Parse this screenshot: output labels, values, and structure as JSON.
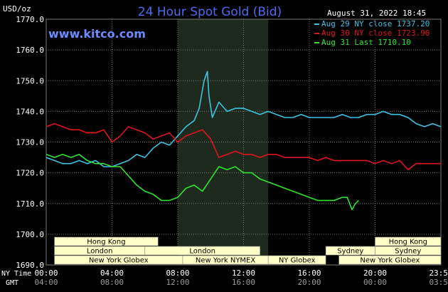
{
  "header": {
    "title": "24 Hour Spot Gold (Bid)",
    "unit": "USD/oz",
    "timestamp": "August 31, 2022 18:45",
    "watermark": "www.kitco.com"
  },
  "colors": {
    "background": "#000000",
    "plot_bg": "#000000",
    "grid": "#7a7a7a",
    "shade": "#1e2a1e",
    "title": "#4a6cf0",
    "watermark": "#6a8cff",
    "axis_text": "#ffffff",
    "session_bar": "#ffffc8",
    "session_text": "#000000",
    "aug29": "#3cc4e6",
    "aug30": "#e0141e",
    "aug31": "#2ee62e"
  },
  "axis": {
    "ny_time_label": "NY Time",
    "gmt_label": "GMT",
    "ny_ticks": [
      "00:00",
      "04:00",
      "08:00",
      "12:00",
      "16:00",
      "20:00",
      "23:59"
    ],
    "gmt_ticks": [
      "04:00",
      "08:00",
      "12:00",
      "16:00",
      "20:00",
      "00:00",
      "03:59"
    ]
  },
  "legend": [
    {
      "label": "Aug 29 NY close 1737.20",
      "color": "#3cc4e6"
    },
    {
      "label": "Aug 30 NY close 1723.90",
      "color": "#e0141e"
    },
    {
      "label": "Aug 31 Last 1710.10",
      "color": "#2ee62e"
    }
  ],
  "sessions": [
    {
      "label": "Hong Kong",
      "start": 0.5,
      "end": 6.8,
      "row": 0
    },
    {
      "label": "Hong Kong",
      "start": 20.0,
      "end": 24.0,
      "row": 0
    },
    {
      "label": "London",
      "start": 0.5,
      "end": 6.0,
      "row": 1
    },
    {
      "label": "London",
      "start": 6.0,
      "end": 13.0,
      "row": 1
    },
    {
      "label": "Sydney",
      "start": 17.0,
      "end": 20.0,
      "row": 1
    },
    {
      "label": "Sydney",
      "start": 20.0,
      "end": 24.0,
      "row": 1
    },
    {
      "label": "New York Globex",
      "start": 0.5,
      "end": 8.3,
      "row": 2
    },
    {
      "label": "New York NYMEX",
      "start": 8.3,
      "end": 13.5,
      "row": 2
    },
    {
      "label": "NY Globex",
      "start": 13.5,
      "end": 17.0,
      "row": 2
    },
    {
      "label": "New York Globex",
      "start": 17.8,
      "end": 24.0,
      "row": 2
    }
  ],
  "chart_data": {
    "type": "line",
    "title": "24 Hour Spot Gold (Bid)",
    "ylabel": "USD/oz",
    "xlabel": "NY Time",
    "xlim": [
      0,
      24
    ],
    "ylim": [
      1690,
      1770
    ],
    "yticks": [
      1690,
      1700,
      1710,
      1720,
      1730,
      1740,
      1750,
      1760,
      1770
    ],
    "shaded_hours": [
      8.0,
      13.5
    ],
    "grid": true,
    "legend_position": "top-right",
    "series": [
      {
        "name": "Aug 29 NY close 1737.20",
        "color": "#3cc4e6",
        "x": [
          0,
          0.5,
          1,
          1.5,
          2,
          2.5,
          3,
          3.5,
          4,
          4.5,
          5,
          5.5,
          6,
          6.5,
          7,
          7.5,
          8,
          8.5,
          9,
          9.3,
          9.6,
          9.8,
          9.9,
          10.1,
          10.5,
          11,
          11.5,
          12,
          12.5,
          13,
          13.5,
          14,
          14.5,
          15,
          15.5,
          16,
          16.5,
          17,
          17.5,
          18,
          18.5,
          19,
          19.5,
          20,
          20.5,
          21,
          21.5,
          22,
          22.5,
          23,
          23.5,
          24
        ],
        "values": [
          1725,
          1724,
          1723,
          1723,
          1724,
          1723,
          1724,
          1722,
          1722,
          1723,
          1724,
          1726,
          1725,
          1728,
          1730,
          1729,
          1732,
          1735,
          1737,
          1741,
          1750,
          1753,
          1745,
          1738,
          1743,
          1740,
          1741,
          1741,
          1740,
          1739,
          1740,
          1739,
          1738,
          1738,
          1739,
          1738,
          1738,
          1738,
          1738,
          1739,
          1738,
          1738,
          1739,
          1739,
          1740,
          1739,
          1739,
          1738,
          1736,
          1735,
          1736,
          1735
        ]
      },
      {
        "name": "Aug 30 NY close 1723.90",
        "color": "#e0141e",
        "x": [
          0,
          0.5,
          1,
          1.5,
          2,
          2.5,
          3,
          3.5,
          4,
          4.5,
          5,
          5.5,
          6,
          6.5,
          7,
          7.5,
          8,
          8.5,
          9,
          9.5,
          10,
          10.5,
          11,
          11.5,
          12,
          12.5,
          13,
          13.5,
          14,
          14.5,
          15,
          15.5,
          16,
          16.5,
          17,
          17.5,
          18,
          18.5,
          19,
          19.5,
          20,
          20.5,
          21,
          21.5,
          22,
          22.5,
          23,
          23.5,
          24
        ],
        "values": [
          1735,
          1736,
          1735,
          1734,
          1734,
          1733,
          1733,
          1734,
          1730,
          1732,
          1735,
          1734,
          1733,
          1731,
          1732,
          1733,
          1730,
          1732,
          1733,
          1734,
          1731,
          1725,
          1726,
          1727,
          1726,
          1726,
          1725,
          1726,
          1726,
          1725,
          1725,
          1725,
          1725,
          1724,
          1725,
          1724,
          1724,
          1724,
          1724,
          1724,
          1723,
          1724,
          1723,
          1724,
          1721,
          1723,
          1723,
          1723,
          1723
        ]
      },
      {
        "name": "Aug 31 Last 1710.10",
        "color": "#2ee62e",
        "x": [
          0,
          0.5,
          1,
          1.5,
          2,
          2.5,
          3,
          3.5,
          4,
          4.5,
          5,
          5.5,
          6,
          6.5,
          7,
          7.5,
          8,
          8.5,
          9,
          9.5,
          10,
          10.5,
          11,
          11.5,
          12,
          12.5,
          13,
          13.5,
          14,
          14.5,
          15,
          15.5,
          16,
          16.5,
          17,
          17.5,
          18,
          18.3,
          18.6,
          18.8,
          19
        ],
        "values": [
          1726,
          1725,
          1726,
          1725,
          1726,
          1724,
          1723,
          1723,
          1722,
          1722,
          1719,
          1716,
          1714,
          1713,
          1711,
          1711,
          1712,
          1715,
          1716,
          1714,
          1718,
          1722,
          1721,
          1722,
          1720,
          1720,
          1718,
          1717,
          1716,
          1715,
          1714,
          1713,
          1712,
          1711,
          1711,
          1711,
          1712,
          1712,
          1708,
          1710,
          1711
        ]
      }
    ]
  }
}
